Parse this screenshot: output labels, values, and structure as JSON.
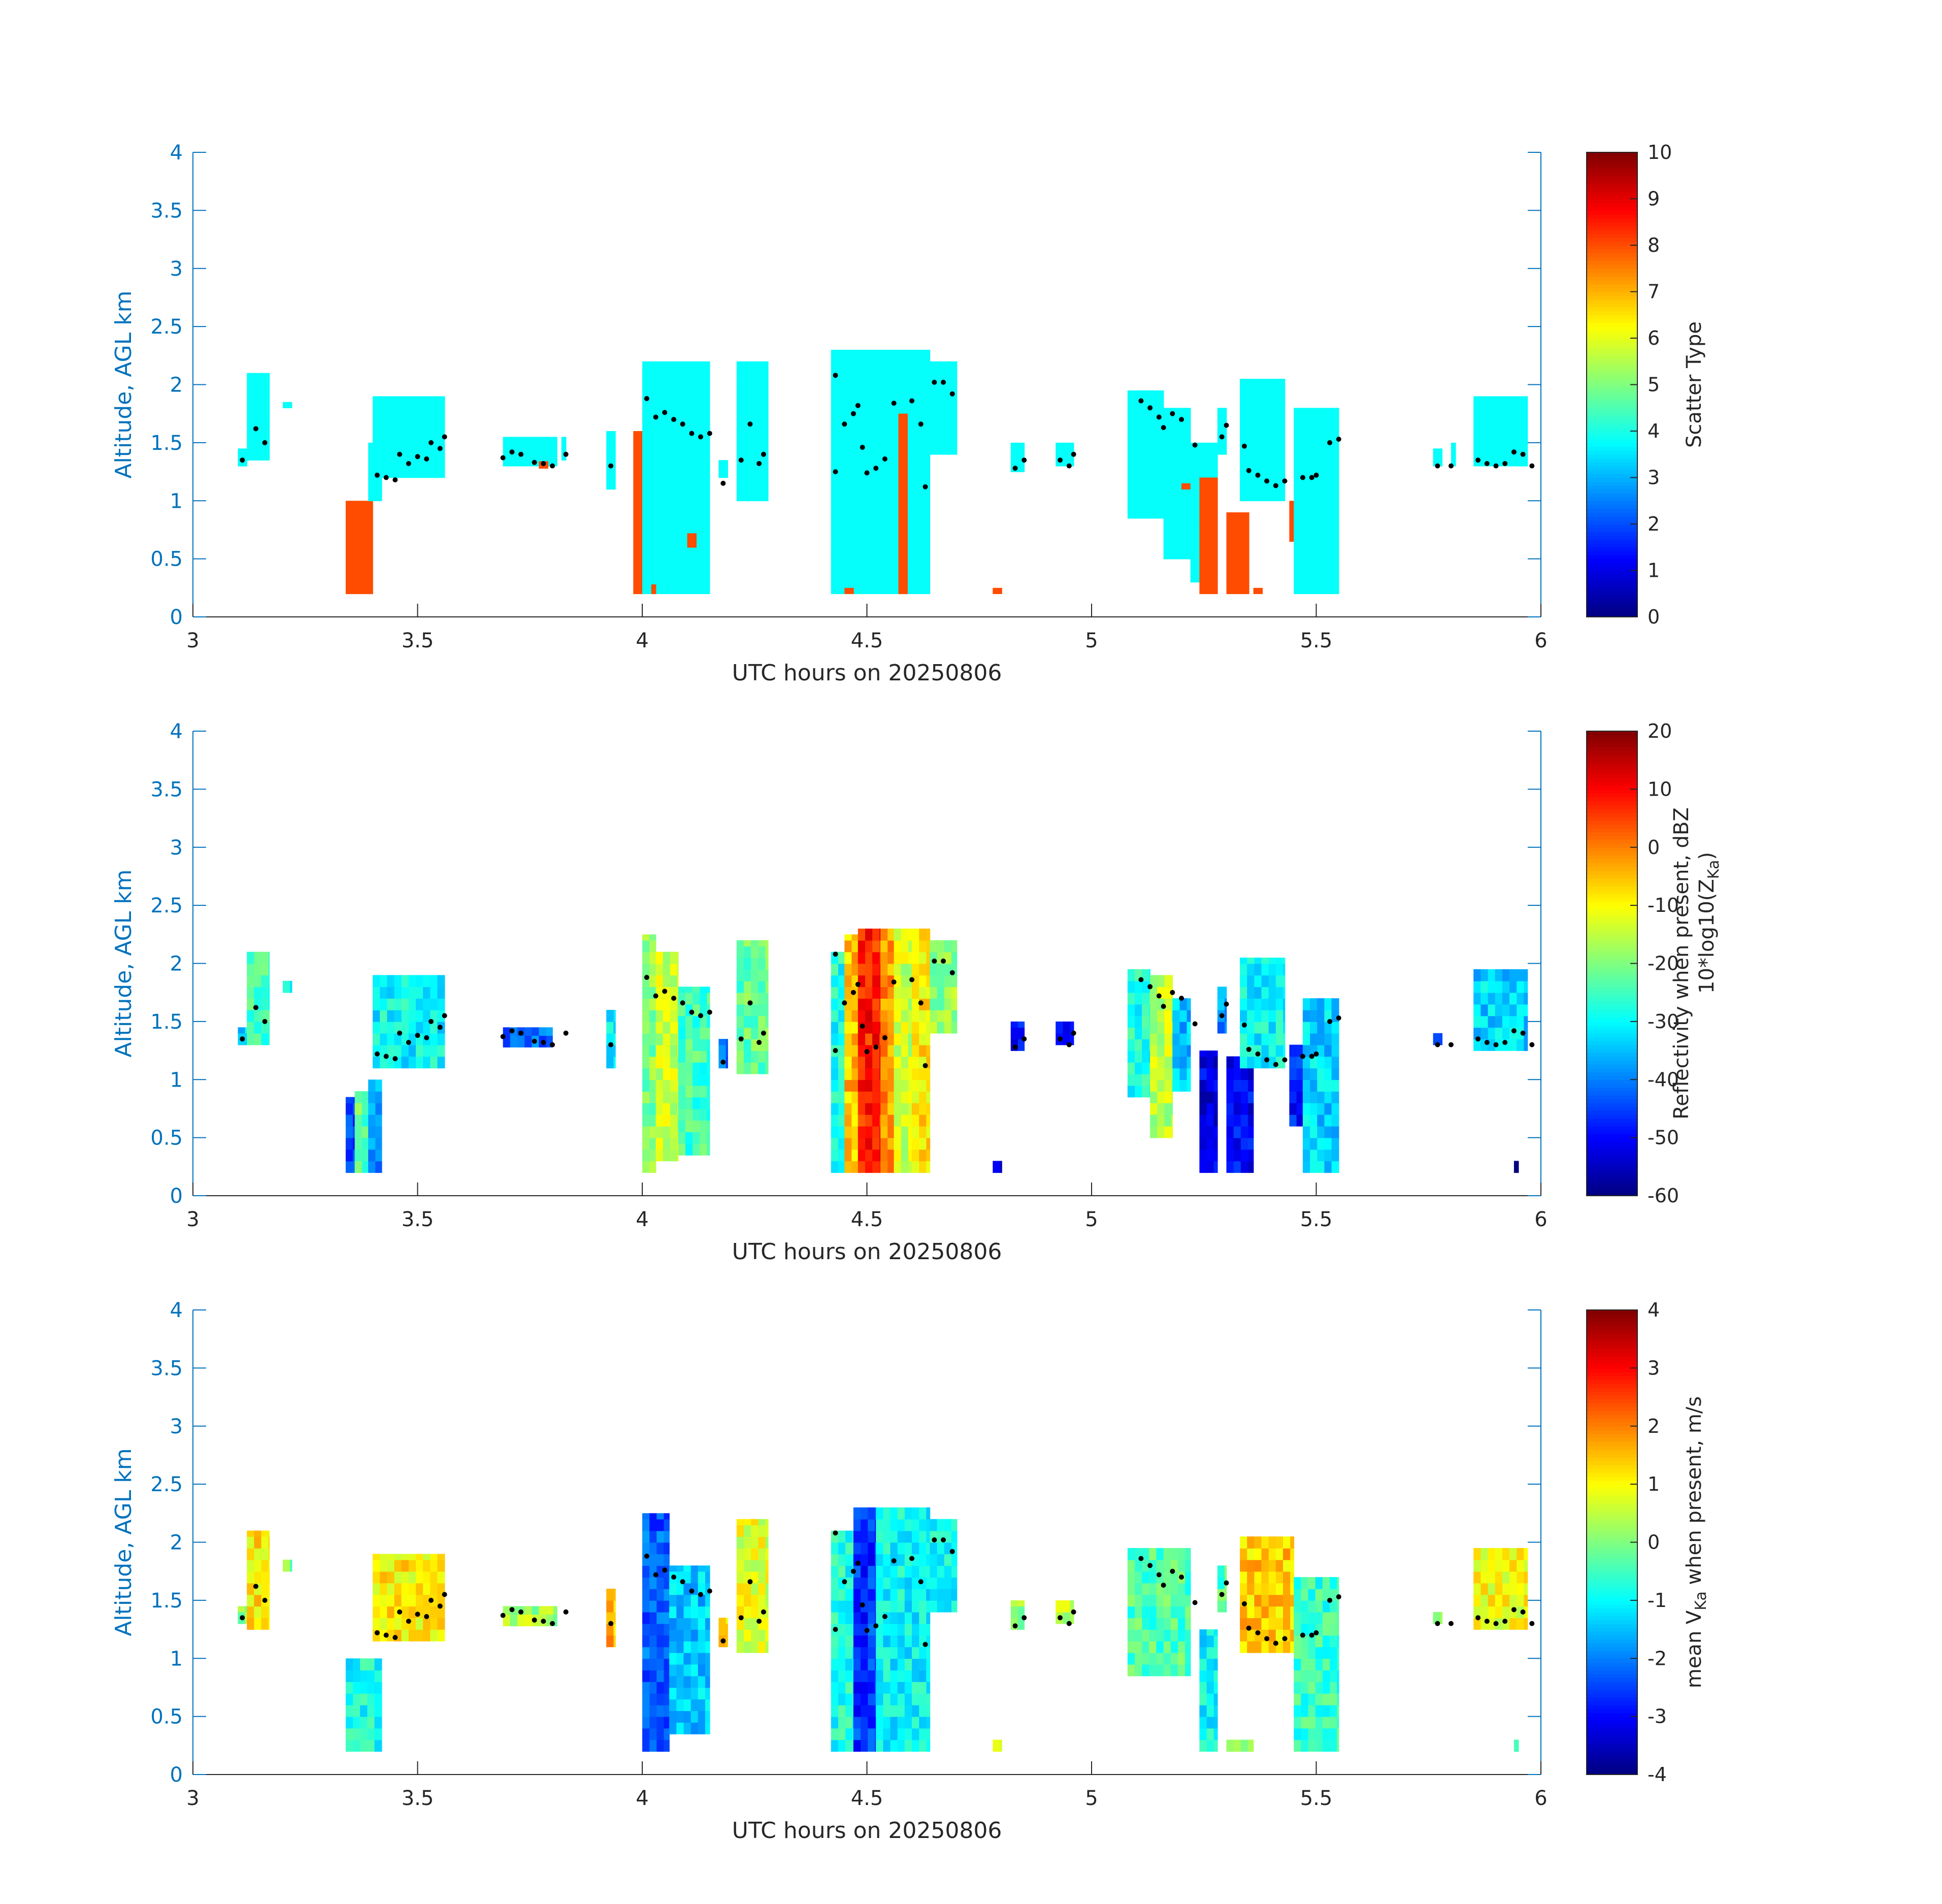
{
  "chart_data": [
    {
      "type": "heatmap",
      "xlabel": "UTC hours on 20250806",
      "ylabel": "Altitude, AGL km",
      "xlim": [
        3,
        6
      ],
      "ylim": [
        0,
        4
      ],
      "xticks": [
        "3",
        "3.5",
        "4",
        "4.5",
        "5",
        "5.5",
        "6"
      ],
      "yticks": [
        "0",
        "0.5",
        "1",
        "1.5",
        "2",
        "2.5",
        "3",
        "3.5",
        "4"
      ],
      "colorbar": {
        "label": "Scatter Type",
        "label_sub": "",
        "range": [
          0,
          10
        ],
        "ticks": [
          "0",
          "1",
          "2",
          "3",
          "4",
          "5",
          "6",
          "7",
          "8",
          "9",
          "10"
        ],
        "colormap": "jet"
      },
      "columns": [
        {
          "t0": 3.1,
          "t1": 3.12,
          "bot": 1.3,
          "top": 1.45,
          "v": 3.8
        },
        {
          "t0": 3.12,
          "t1": 3.17,
          "bot": 1.35,
          "top": 2.1,
          "v": 3.8
        },
        {
          "t0": 3.2,
          "t1": 3.22,
          "bot": 1.8,
          "top": 1.85,
          "v": 3.8
        },
        {
          "t0": 3.34,
          "t1": 3.4,
          "bot": 0.2,
          "top": 1.0,
          "v": 8.0
        },
        {
          "t0": 3.39,
          "t1": 3.42,
          "bot": 1.0,
          "top": 1.5,
          "v": 3.8
        },
        {
          "t0": 3.4,
          "t1": 3.56,
          "bot": 1.2,
          "top": 1.9,
          "v": 3.8
        },
        {
          "t0": 3.69,
          "t1": 3.81,
          "bot": 1.3,
          "top": 1.55,
          "v": 3.8
        },
        {
          "t0": 3.77,
          "t1": 3.79,
          "bot": 1.28,
          "top": 1.34,
          "v": 8.0
        },
        {
          "t0": 3.82,
          "t1": 3.83,
          "bot": 1.35,
          "top": 1.55,
          "v": 3.8
        },
        {
          "t0": 3.92,
          "t1": 3.94,
          "bot": 1.1,
          "top": 1.6,
          "v": 3.8
        },
        {
          "t0": 3.98,
          "t1": 4.0,
          "bot": 0.2,
          "top": 1.6,
          "v": 8.0
        },
        {
          "t0": 4.0,
          "t1": 4.15,
          "bot": 0.2,
          "top": 2.2,
          "v": 3.8
        },
        {
          "t0": 4.02,
          "t1": 4.03,
          "bot": 0.2,
          "top": 0.28,
          "v": 8.0
        },
        {
          "t0": 4.1,
          "t1": 4.12,
          "bot": 0.6,
          "top": 0.72,
          "v": 8.0
        },
        {
          "t0": 4.17,
          "t1": 4.19,
          "bot": 1.2,
          "top": 1.35,
          "v": 3.8
        },
        {
          "t0": 4.21,
          "t1": 4.28,
          "bot": 1.0,
          "top": 2.2,
          "v": 3.8
        },
        {
          "t0": 4.42,
          "t1": 4.64,
          "bot": 0.2,
          "top": 2.3,
          "v": 3.8
        },
        {
          "t0": 4.57,
          "t1": 4.59,
          "bot": 0.2,
          "top": 1.75,
          "v": 8.0
        },
        {
          "t0": 4.45,
          "t1": 4.47,
          "bot": 0.2,
          "top": 0.25,
          "v": 8.0
        },
        {
          "t0": 4.64,
          "t1": 4.7,
          "bot": 1.4,
          "top": 2.2,
          "v": 3.8
        },
        {
          "t0": 4.78,
          "t1": 4.8,
          "bot": 0.2,
          "top": 0.25,
          "v": 8.0
        },
        {
          "t0": 4.82,
          "t1": 4.85,
          "bot": 1.25,
          "top": 1.5,
          "v": 3.8
        },
        {
          "t0": 4.92,
          "t1": 4.96,
          "bot": 1.3,
          "top": 1.5,
          "v": 3.8
        },
        {
          "t0": 5.08,
          "t1": 5.16,
          "bot": 0.85,
          "top": 1.95,
          "v": 3.8
        },
        {
          "t0": 5.16,
          "t1": 5.22,
          "bot": 0.5,
          "top": 1.8,
          "v": 3.8
        },
        {
          "t0": 5.2,
          "t1": 5.22,
          "bot": 1.1,
          "top": 1.15,
          "v": 8.0
        },
        {
          "t0": 5.22,
          "t1": 5.28,
          "bot": 0.3,
          "top": 1.5,
          "v": 3.8
        },
        {
          "t0": 5.24,
          "t1": 5.28,
          "bot": 0.2,
          "top": 1.2,
          "v": 8.0
        },
        {
          "t0": 5.28,
          "t1": 5.3,
          "bot": 1.4,
          "top": 1.8,
          "v": 3.8
        },
        {
          "t0": 5.3,
          "t1": 5.35,
          "bot": 0.2,
          "top": 0.9,
          "v": 8.0
        },
        {
          "t0": 5.33,
          "t1": 5.43,
          "bot": 1.0,
          "top": 2.05,
          "v": 3.8
        },
        {
          "t0": 5.36,
          "t1": 5.38,
          "bot": 0.2,
          "top": 0.25,
          "v": 8.0
        },
        {
          "t0": 5.44,
          "t1": 5.46,
          "bot": 0.65,
          "top": 1.0,
          "v": 8.0
        },
        {
          "t0": 5.45,
          "t1": 5.55,
          "bot": 0.2,
          "top": 1.8,
          "v": 3.8
        },
        {
          "t0": 5.76,
          "t1": 5.78,
          "bot": 1.3,
          "top": 1.45,
          "v": 3.8
        },
        {
          "t0": 5.8,
          "t1": 5.81,
          "bot": 1.3,
          "top": 1.5,
          "v": 3.8
        },
        {
          "t0": 5.85,
          "t1": 5.97,
          "bot": 1.3,
          "top": 1.9,
          "v": 3.8
        }
      ]
    },
    {
      "type": "heatmap",
      "xlabel": "UTC hours on 20250806",
      "ylabel": "Altitude, AGL km",
      "xlim": [
        3,
        6
      ],
      "ylim": [
        0,
        4
      ],
      "xticks": [
        "3",
        "3.5",
        "4",
        "4.5",
        "5",
        "5.5",
        "6"
      ],
      "yticks": [
        "0",
        "0.5",
        "1",
        "1.5",
        "2",
        "2.5",
        "3",
        "3.5",
        "4"
      ],
      "colorbar": {
        "label": "Reflectivity when present, dBZ",
        "label_sub": "10*log10(Z",
        "label_sub_subscript": "Ka",
        "label_sub_end": ")",
        "range": [
          -60,
          20
        ],
        "ticks": [
          "-60",
          "-50",
          "-40",
          "-30",
          "-20",
          "-10",
          "0",
          "10",
          "20"
        ],
        "colormap": "jet"
      },
      "columns": [
        {
          "t0": 3.1,
          "t1": 3.12,
          "bot": 1.3,
          "top": 1.45,
          "v": -35
        },
        {
          "t0": 3.12,
          "t1": 3.17,
          "bot": 1.3,
          "top": 2.1,
          "v": -25
        },
        {
          "t0": 3.2,
          "t1": 3.22,
          "bot": 1.75,
          "top": 1.85,
          "v": -32
        },
        {
          "t0": 3.34,
          "t1": 3.36,
          "bot": 0.2,
          "top": 0.85,
          "v": -45
        },
        {
          "t0": 3.36,
          "t1": 3.39,
          "bot": 0.2,
          "top": 0.9,
          "v": -22
        },
        {
          "t0": 3.39,
          "t1": 3.42,
          "bot": 0.2,
          "top": 1.0,
          "v": -38
        },
        {
          "t0": 3.4,
          "t1": 3.56,
          "bot": 1.1,
          "top": 1.9,
          "v": -30
        },
        {
          "t0": 3.69,
          "t1": 3.8,
          "bot": 1.28,
          "top": 1.45,
          "v": -42
        },
        {
          "t0": 3.92,
          "t1": 3.94,
          "bot": 1.1,
          "top": 1.6,
          "v": -32
        },
        {
          "t0": 4.0,
          "t1": 4.03,
          "bot": 0.2,
          "top": 2.25,
          "v": -20
        },
        {
          "t0": 4.03,
          "t1": 4.08,
          "bot": 0.3,
          "top": 2.1,
          "v": -14
        },
        {
          "t0": 4.08,
          "t1": 4.15,
          "bot": 0.35,
          "top": 1.8,
          "v": -25
        },
        {
          "t0": 4.17,
          "t1": 4.19,
          "bot": 1.1,
          "top": 1.35,
          "v": -40
        },
        {
          "t0": 4.21,
          "t1": 4.28,
          "bot": 1.05,
          "top": 2.2,
          "v": -22
        },
        {
          "t0": 4.42,
          "t1": 4.45,
          "bot": 0.2,
          "top": 2.1,
          "v": -28
        },
        {
          "t0": 4.45,
          "t1": 4.48,
          "bot": 0.2,
          "top": 2.25,
          "v": -5
        },
        {
          "t0": 4.48,
          "t1": 4.53,
          "bot": 0.2,
          "top": 2.3,
          "v": 8
        },
        {
          "t0": 4.53,
          "t1": 4.56,
          "bot": 0.2,
          "top": 2.3,
          "v": -2
        },
        {
          "t0": 4.56,
          "t1": 4.6,
          "bot": 0.2,
          "top": 2.3,
          "v": -14
        },
        {
          "t0": 4.6,
          "t1": 4.64,
          "bot": 0.2,
          "top": 2.3,
          "v": -8
        },
        {
          "t0": 4.64,
          "t1": 4.7,
          "bot": 1.4,
          "top": 2.2,
          "v": -18
        },
        {
          "t0": 4.78,
          "t1": 4.8,
          "bot": 0.2,
          "top": 0.3,
          "v": -55
        },
        {
          "t0": 4.82,
          "t1": 4.85,
          "bot": 1.25,
          "top": 1.5,
          "v": -50
        },
        {
          "t0": 4.92,
          "t1": 4.96,
          "bot": 1.3,
          "top": 1.5,
          "v": -48
        },
        {
          "t0": 5.08,
          "t1": 5.13,
          "bot": 0.85,
          "top": 1.95,
          "v": -28
        },
        {
          "t0": 5.13,
          "t1": 5.18,
          "bot": 0.5,
          "top": 1.9,
          "v": -15
        },
        {
          "t0": 5.18,
          "t1": 5.22,
          "bot": 0.9,
          "top": 1.7,
          "v": -35
        },
        {
          "t0": 5.24,
          "t1": 5.28,
          "bot": 0.2,
          "top": 1.25,
          "v": -52
        },
        {
          "t0": 5.28,
          "t1": 5.3,
          "bot": 1.4,
          "top": 1.8,
          "v": -38
        },
        {
          "t0": 5.3,
          "t1": 5.36,
          "bot": 0.2,
          "top": 1.2,
          "v": -50
        },
        {
          "t0": 5.33,
          "t1": 5.43,
          "bot": 1.1,
          "top": 2.05,
          "v": -30
        },
        {
          "t0": 5.44,
          "t1": 5.47,
          "bot": 0.6,
          "top": 1.3,
          "v": -48
        },
        {
          "t0": 5.47,
          "t1": 5.55,
          "bot": 0.2,
          "top": 1.7,
          "v": -33
        },
        {
          "t0": 5.76,
          "t1": 5.78,
          "bot": 1.3,
          "top": 1.4,
          "v": -45
        },
        {
          "t0": 5.85,
          "t1": 5.97,
          "bot": 1.25,
          "top": 1.95,
          "v": -33
        },
        {
          "t0": 5.94,
          "t1": 5.95,
          "bot": 0.2,
          "top": 0.3,
          "v": -55
        }
      ]
    },
    {
      "type": "heatmap",
      "xlabel": "UTC hours on 20250806",
      "ylabel": "Altitude, AGL km",
      "xlim": [
        3,
        6
      ],
      "ylim": [
        0,
        4
      ],
      "xticks": [
        "3",
        "3.5",
        "4",
        "4.5",
        "5",
        "5.5",
        "6"
      ],
      "yticks": [
        "0",
        "0.5",
        "1",
        "1.5",
        "2",
        "2.5",
        "3",
        "3.5",
        "4"
      ],
      "colorbar": {
        "label": "mean V",
        "label_subscript": "Ka",
        "label_end": " when present, m/s",
        "label_sub": "",
        "range": [
          -4,
          4
        ],
        "ticks": [
          "-4",
          "-3",
          "-2",
          "-1",
          "0",
          "1",
          "2",
          "3",
          "4"
        ],
        "colormap": "jet"
      },
      "columns": [
        {
          "t0": 3.1,
          "t1": 3.12,
          "bot": 1.3,
          "top": 1.45,
          "v": 0.2
        },
        {
          "t0": 3.12,
          "t1": 3.17,
          "bot": 1.25,
          "top": 2.1,
          "v": 1.2
        },
        {
          "t0": 3.2,
          "t1": 3.22,
          "bot": 1.75,
          "top": 1.85,
          "v": 0.0
        },
        {
          "t0": 3.34,
          "t1": 3.42,
          "bot": 0.2,
          "top": 1.0,
          "v": -0.9
        },
        {
          "t0": 3.4,
          "t1": 3.56,
          "bot": 1.15,
          "top": 1.9,
          "v": 1.1
        },
        {
          "t0": 3.69,
          "t1": 3.81,
          "bot": 1.28,
          "top": 1.45,
          "v": 0.3
        },
        {
          "t0": 3.92,
          "t1": 3.94,
          "bot": 1.1,
          "top": 1.6,
          "v": 1.6
        },
        {
          "t0": 4.0,
          "t1": 4.06,
          "bot": 0.2,
          "top": 2.25,
          "v": -2.3
        },
        {
          "t0": 4.06,
          "t1": 4.15,
          "bot": 0.35,
          "top": 1.8,
          "v": -1.4
        },
        {
          "t0": 4.17,
          "t1": 4.19,
          "bot": 1.1,
          "top": 1.35,
          "v": 1.3
        },
        {
          "t0": 4.21,
          "t1": 4.28,
          "bot": 1.05,
          "top": 2.2,
          "v": 0.8
        },
        {
          "t0": 4.42,
          "t1": 4.47,
          "bot": 0.2,
          "top": 2.1,
          "v": -0.8
        },
        {
          "t0": 4.47,
          "t1": 4.52,
          "bot": 0.2,
          "top": 2.3,
          "v": -2.6
        },
        {
          "t0": 4.52,
          "t1": 4.64,
          "bot": 0.2,
          "top": 2.3,
          "v": -1.0
        },
        {
          "t0": 4.64,
          "t1": 4.7,
          "bot": 1.4,
          "top": 2.2,
          "v": -0.9
        },
        {
          "t0": 4.78,
          "t1": 4.8,
          "bot": 0.2,
          "top": 0.3,
          "v": 0.3
        },
        {
          "t0": 4.82,
          "t1": 4.85,
          "bot": 1.25,
          "top": 1.5,
          "v": 0.2
        },
        {
          "t0": 4.92,
          "t1": 4.96,
          "bot": 1.3,
          "top": 1.5,
          "v": 0.5
        },
        {
          "t0": 5.08,
          "t1": 5.22,
          "bot": 0.85,
          "top": 1.95,
          "v": -0.4
        },
        {
          "t0": 5.24,
          "t1": 5.28,
          "bot": 0.2,
          "top": 1.25,
          "v": -1.0
        },
        {
          "t0": 5.28,
          "t1": 5.3,
          "bot": 1.4,
          "top": 1.8,
          "v": -0.4
        },
        {
          "t0": 5.3,
          "t1": 5.36,
          "bot": 0.2,
          "top": 0.3,
          "v": 0.2
        },
        {
          "t0": 5.33,
          "t1": 5.45,
          "bot": 1.05,
          "top": 2.05,
          "v": 1.4
        },
        {
          "t0": 5.45,
          "t1": 5.55,
          "bot": 0.2,
          "top": 1.7,
          "v": -0.6
        },
        {
          "t0": 5.76,
          "t1": 5.78,
          "bot": 1.3,
          "top": 1.4,
          "v": 0.2
        },
        {
          "t0": 5.85,
          "t1": 5.97,
          "bot": 1.25,
          "top": 1.95,
          "v": 0.9
        },
        {
          "t0": 5.94,
          "t1": 5.95,
          "bot": 0.2,
          "top": 0.3,
          "v": 0.1
        }
      ]
    }
  ],
  "dots": [
    {
      "t": 3.11,
      "z": 1.35
    },
    {
      "t": 3.14,
      "z": 1.62
    },
    {
      "t": 3.16,
      "z": 1.5
    },
    {
      "t": 3.41,
      "z": 1.22
    },
    {
      "t": 3.43,
      "z": 1.2
    },
    {
      "t": 3.45,
      "z": 1.18
    },
    {
      "t": 3.46,
      "z": 1.4
    },
    {
      "t": 3.48,
      "z": 1.32
    },
    {
      "t": 3.5,
      "z": 1.38
    },
    {
      "t": 3.52,
      "z": 1.36
    },
    {
      "t": 3.53,
      "z": 1.5
    },
    {
      "t": 3.55,
      "z": 1.45
    },
    {
      "t": 3.56,
      "z": 1.55
    },
    {
      "t": 3.69,
      "z": 1.37
    },
    {
      "t": 3.71,
      "z": 1.42
    },
    {
      "t": 3.73,
      "z": 1.4
    },
    {
      "t": 3.76,
      "z": 1.33
    },
    {
      "t": 3.78,
      "z": 1.32
    },
    {
      "t": 3.8,
      "z": 1.3
    },
    {
      "t": 3.83,
      "z": 1.4
    },
    {
      "t": 3.93,
      "z": 1.3
    },
    {
      "t": 4.01,
      "z": 1.88
    },
    {
      "t": 4.03,
      "z": 1.72
    },
    {
      "t": 4.05,
      "z": 1.76
    },
    {
      "t": 4.07,
      "z": 1.7
    },
    {
      "t": 4.09,
      "z": 1.66
    },
    {
      "t": 4.11,
      "z": 1.58
    },
    {
      "t": 4.13,
      "z": 1.55
    },
    {
      "t": 4.15,
      "z": 1.58
    },
    {
      "t": 4.18,
      "z": 1.15
    },
    {
      "t": 4.22,
      "z": 1.35
    },
    {
      "t": 4.24,
      "z": 1.66
    },
    {
      "t": 4.26,
      "z": 1.32
    },
    {
      "t": 4.27,
      "z": 1.4
    },
    {
      "t": 4.43,
      "z": 1.25
    },
    {
      "t": 4.43,
      "z": 2.08
    },
    {
      "t": 4.45,
      "z": 1.66
    },
    {
      "t": 4.47,
      "z": 1.75
    },
    {
      "t": 4.48,
      "z": 1.82
    },
    {
      "t": 4.49,
      "z": 1.46
    },
    {
      "t": 4.5,
      "z": 1.24
    },
    {
      "t": 4.52,
      "z": 1.28
    },
    {
      "t": 4.54,
      "z": 1.36
    },
    {
      "t": 4.56,
      "z": 1.84
    },
    {
      "t": 4.6,
      "z": 1.86
    },
    {
      "t": 4.62,
      "z": 1.66
    },
    {
      "t": 4.63,
      "z": 1.12
    },
    {
      "t": 4.65,
      "z": 2.02
    },
    {
      "t": 4.67,
      "z": 2.02
    },
    {
      "t": 4.69,
      "z": 1.92
    },
    {
      "t": 4.83,
      "z": 1.28
    },
    {
      "t": 4.85,
      "z": 1.35
    },
    {
      "t": 4.93,
      "z": 1.35
    },
    {
      "t": 4.95,
      "z": 1.3
    },
    {
      "t": 4.96,
      "z": 1.4
    },
    {
      "t": 5.11,
      "z": 1.86
    },
    {
      "t": 5.13,
      "z": 1.8
    },
    {
      "t": 5.15,
      "z": 1.72
    },
    {
      "t": 5.16,
      "z": 1.63
    },
    {
      "t": 5.18,
      "z": 1.75
    },
    {
      "t": 5.2,
      "z": 1.7
    },
    {
      "t": 5.23,
      "z": 1.48
    },
    {
      "t": 5.29,
      "z": 1.55
    },
    {
      "t": 5.3,
      "z": 1.65
    },
    {
      "t": 5.34,
      "z": 1.47
    },
    {
      "t": 5.35,
      "z": 1.26
    },
    {
      "t": 5.37,
      "z": 1.22
    },
    {
      "t": 5.39,
      "z": 1.17
    },
    {
      "t": 5.41,
      "z": 1.13
    },
    {
      "t": 5.43,
      "z": 1.17
    },
    {
      "t": 5.47,
      "z": 1.2
    },
    {
      "t": 5.49,
      "z": 1.2
    },
    {
      "t": 5.5,
      "z": 1.22
    },
    {
      "t": 5.53,
      "z": 1.5
    },
    {
      "t": 5.55,
      "z": 1.53
    },
    {
      "t": 5.77,
      "z": 1.3
    },
    {
      "t": 5.8,
      "z": 1.3
    },
    {
      "t": 5.86,
      "z": 1.35
    },
    {
      "t": 5.88,
      "z": 1.32
    },
    {
      "t": 5.9,
      "z": 1.3
    },
    {
      "t": 5.92,
      "z": 1.32
    },
    {
      "t": 5.94,
      "z": 1.42
    },
    {
      "t": 5.96,
      "z": 1.4
    },
    {
      "t": 5.98,
      "z": 1.3
    }
  ]
}
